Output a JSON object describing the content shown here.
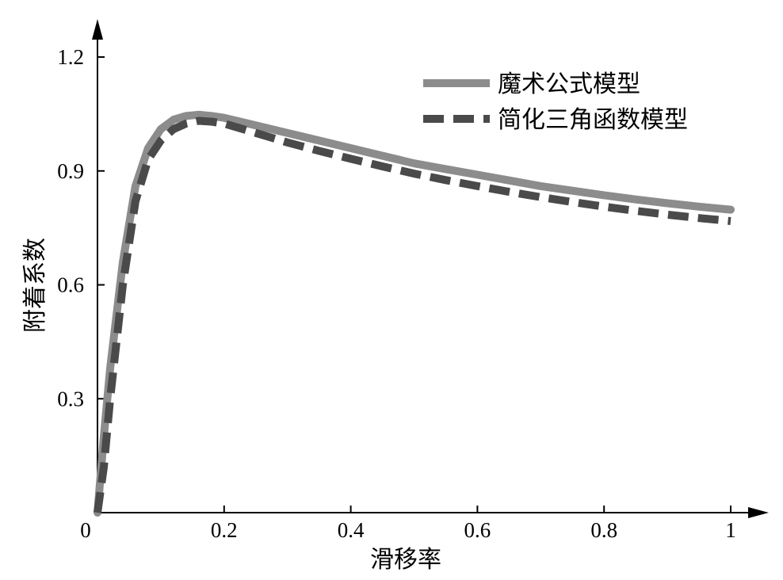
{
  "chart_data": {
    "type": "line",
    "xlabel": "滑移率",
    "ylabel": "附着系数",
    "xlim": [
      0,
      1
    ],
    "ylim": [
      0,
      1.2
    ],
    "x_ticks": [
      {
        "value": 0,
        "label": "0"
      },
      {
        "value": 0.2,
        "label": "0.2"
      },
      {
        "value": 0.4,
        "label": "0.4"
      },
      {
        "value": 0.6,
        "label": "0.6"
      },
      {
        "value": 0.8,
        "label": "0.8"
      },
      {
        "value": 1,
        "label": "1"
      }
    ],
    "y_ticks": [
      {
        "value": 0.3,
        "label": "0.3"
      },
      {
        "value": 0.6,
        "label": "0.6"
      },
      {
        "value": 0.9,
        "label": "0.9"
      },
      {
        "value": 1.2,
        "label": "1.2"
      }
    ],
    "grid": false,
    "legend": "top-right",
    "series": [
      {
        "name": "魔术公式模型",
        "style": "solid",
        "color": "#8c8c8c",
        "x": [
          0,
          0.01,
          0.02,
          0.04,
          0.06,
          0.08,
          0.1,
          0.12,
          0.14,
          0.16,
          0.18,
          0.2,
          0.25,
          0.3,
          0.35,
          0.4,
          0.45,
          0.5,
          0.55,
          0.6,
          0.65,
          0.7,
          0.75,
          0.8,
          0.85,
          0.9,
          0.95,
          1.0
        ],
        "y": [
          0.0,
          0.2,
          0.38,
          0.66,
          0.86,
          0.96,
          1.01,
          1.035,
          1.045,
          1.048,
          1.045,
          1.04,
          1.02,
          1.0,
          0.98,
          0.96,
          0.94,
          0.92,
          0.905,
          0.89,
          0.875,
          0.86,
          0.848,
          0.836,
          0.825,
          0.815,
          0.806,
          0.798
        ]
      },
      {
        "name": "简化三角函数模型",
        "style": "dashed",
        "color": "#4a4a4a",
        "x": [
          0,
          0.01,
          0.02,
          0.04,
          0.06,
          0.08,
          0.1,
          0.12,
          0.14,
          0.16,
          0.18,
          0.2,
          0.25,
          0.3,
          0.35,
          0.4,
          0.45,
          0.5,
          0.55,
          0.6,
          0.65,
          0.7,
          0.75,
          0.8,
          0.85,
          0.9,
          0.95,
          1.0
        ],
        "y": [
          0.0,
          0.12,
          0.3,
          0.6,
          0.82,
          0.93,
          0.98,
          1.01,
          1.025,
          1.032,
          1.03,
          1.025,
          1.0,
          0.975,
          0.953,
          0.932,
          0.912,
          0.893,
          0.876,
          0.86,
          0.845,
          0.831,
          0.818,
          0.806,
          0.795,
          0.785,
          0.776,
          0.768
        ]
      }
    ]
  }
}
